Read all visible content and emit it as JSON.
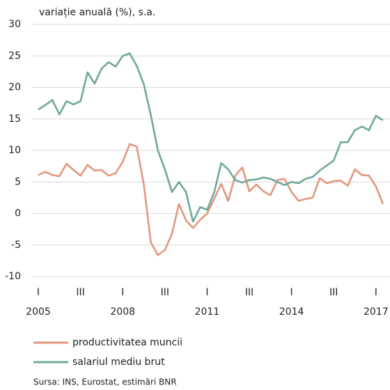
{
  "chart_data": {
    "type": "line",
    "ylabel": "variație anuală (%), s.a.",
    "categories": [
      "I",
      null,
      null,
      null,
      null,
      null,
      "III",
      null,
      null,
      null,
      null,
      null,
      "I",
      null,
      null,
      null,
      null,
      null,
      "III",
      null,
      null,
      null,
      null,
      null,
      "I",
      null,
      null,
      null,
      null,
      null,
      "III",
      null,
      null,
      null,
      null,
      null,
      "I",
      null,
      null,
      null,
      null,
      null,
      "III",
      null,
      null,
      null,
      null,
      null,
      "I",
      null
    ],
    "years": [
      "2005",
      null,
      null,
      null,
      null,
      null,
      null,
      null,
      null,
      null,
      null,
      null,
      "2008",
      null,
      null,
      null,
      null,
      null,
      null,
      null,
      null,
      null,
      null,
      null,
      "2011",
      null,
      null,
      null,
      null,
      null,
      null,
      null,
      null,
      null,
      null,
      null,
      "2014",
      null,
      null,
      null,
      null,
      null,
      null,
      null,
      null,
      null,
      null,
      null,
      "2017",
      null
    ],
    "series": [
      {
        "name": "productivitatea muncii",
        "color": "#e3977c",
        "values": [
          6.1,
          6.6,
          6.1,
          5.9,
          7.9,
          6.9,
          6.0,
          7.7,
          6.8,
          6.9,
          6.0,
          6.4,
          8.2,
          11,
          10.6,
          4.6,
          -4.6,
          -6.6,
          -5.8,
          -3.2,
          1.5,
          -1.1,
          -2.3,
          -1,
          0,
          2.3,
          4.7,
          2,
          6,
          7.3,
          3.5,
          4.6,
          3.5,
          2.9,
          5.3,
          5.5,
          3.4,
          2,
          2.3,
          2.5,
          5.6,
          4.8,
          5.1,
          5.2,
          4.4,
          7,
          6.1,
          6,
          4.3,
          1.5
        ]
      },
      {
        "name": "salariul mediu brut",
        "color": "#6fa89a",
        "values": [
          16.5,
          17.2,
          18,
          15.7,
          17.8,
          17.3,
          17.8,
          22.4,
          20.6,
          23,
          24,
          23.3,
          25,
          25.4,
          23.4,
          20.5,
          15.6,
          10,
          7,
          3.4,
          5,
          3.4,
          -1.3,
          1,
          0.6,
          3.3,
          8,
          7,
          5.3,
          4.9,
          5.3,
          5.4,
          5.7,
          5.5,
          5,
          4.5,
          5,
          4.8,
          5.5,
          5.8,
          6.8,
          7.6,
          8.4,
          11.3,
          11.3,
          13.2,
          13.8,
          13.2,
          15.5,
          14.8
        ]
      }
    ],
    "ylim": [
      -10,
      30
    ],
    "yticks": [
      -10,
      -5,
      0,
      5,
      10,
      15,
      20,
      25,
      30
    ],
    "grid": true,
    "source": "Sursa: INS, Eurostat, estimări BNR"
  }
}
